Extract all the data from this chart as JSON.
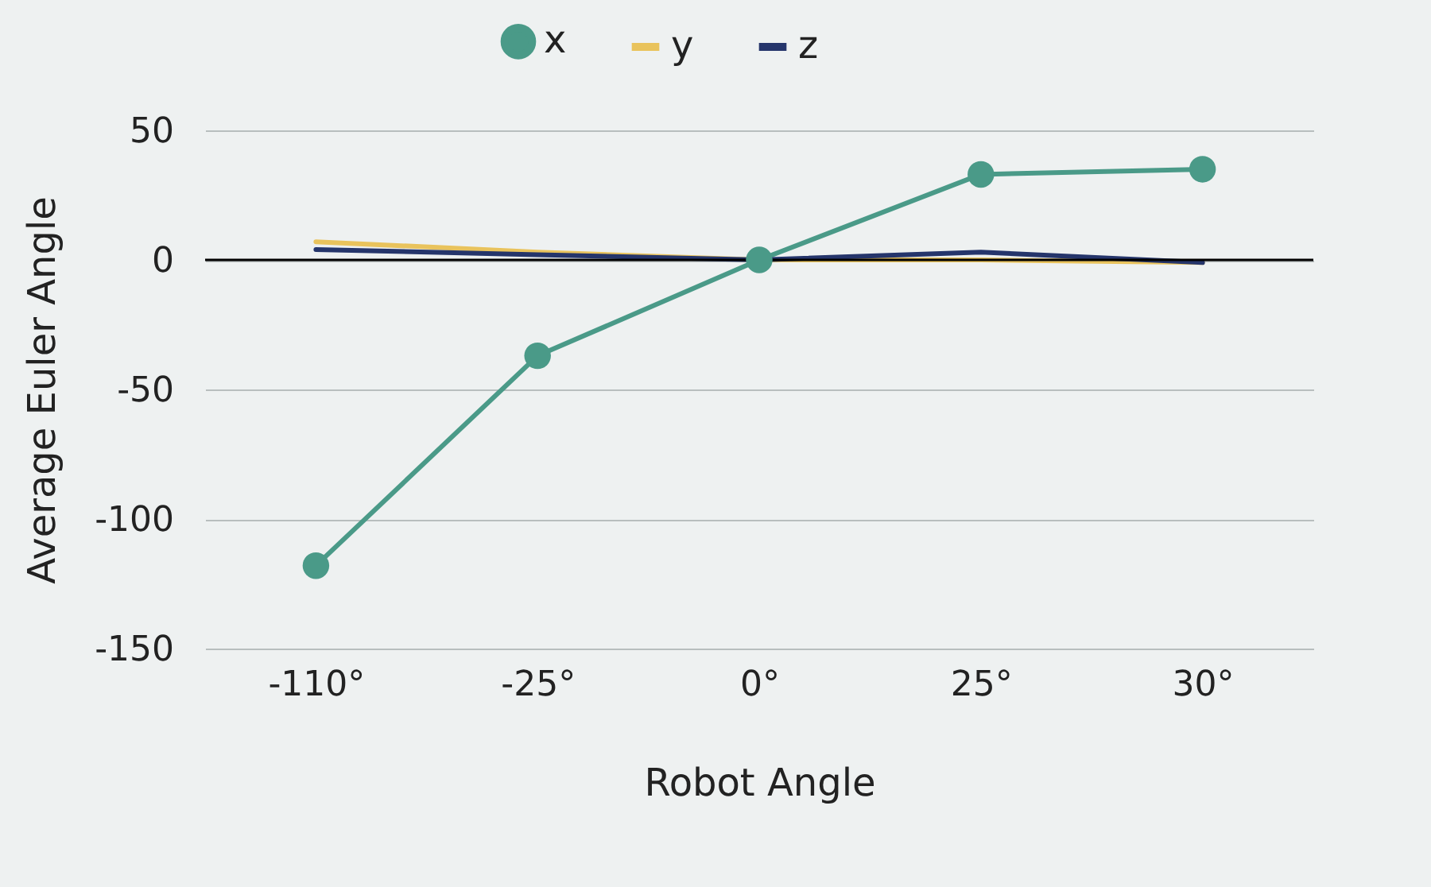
{
  "chart_data": {
    "type": "line",
    "xlabel": "Robot Angle",
    "ylabel": "Average Euler Angle",
    "categories": [
      "-110°",
      "-25°",
      "0°",
      "25°",
      "30°"
    ],
    "series": [
      {
        "name": "x",
        "color": "#4a9a88",
        "marker": "circle",
        "values": [
          -118,
          -37,
          0,
          33,
          35
        ]
      },
      {
        "name": "y",
        "color": "#e9c35c",
        "marker": "none",
        "values": [
          7,
          3,
          0,
          0,
          -1
        ]
      },
      {
        "name": "z",
        "color": "#25356b",
        "marker": "none",
        "values": [
          4,
          2,
          0,
          3,
          -1
        ]
      }
    ],
    "ylim": [
      -150,
      50
    ],
    "yticks": [
      -150,
      -100,
      -50,
      0,
      50
    ],
    "grid": "y",
    "legend": "top",
    "ref_lines": [
      {
        "axis": "y",
        "value": 0,
        "color": "#000000"
      }
    ]
  }
}
